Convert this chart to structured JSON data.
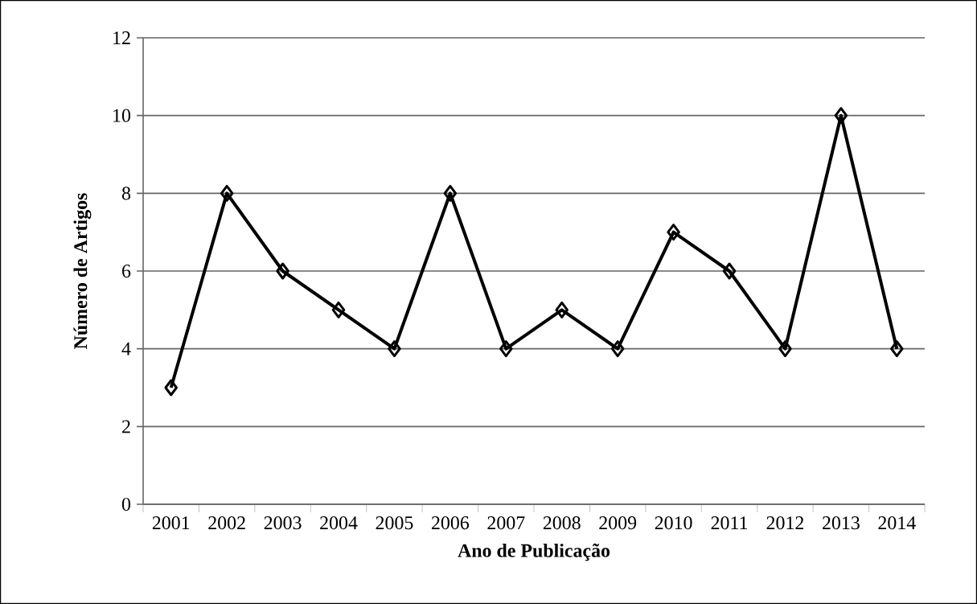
{
  "chart_data": {
    "type": "line",
    "xlabel": "Ano de Publicação",
    "ylabel": "Número de Artigos",
    "categories": [
      "2001",
      "2002",
      "2003",
      "2004",
      "2005",
      "2006",
      "2007",
      "2008",
      "2009",
      "2010",
      "2011",
      "2012",
      "2013",
      "2014"
    ],
    "values": [
      3,
      8,
      6,
      5,
      4,
      8,
      4,
      5,
      4,
      7,
      6,
      4,
      10,
      4
    ],
    "color": "#000000",
    "ylim": [
      0,
      12
    ],
    "yticks": [
      0,
      2,
      4,
      6,
      8,
      10,
      12
    ],
    "grid": "y",
    "marker": "diamond",
    "line_style": "solid"
  }
}
